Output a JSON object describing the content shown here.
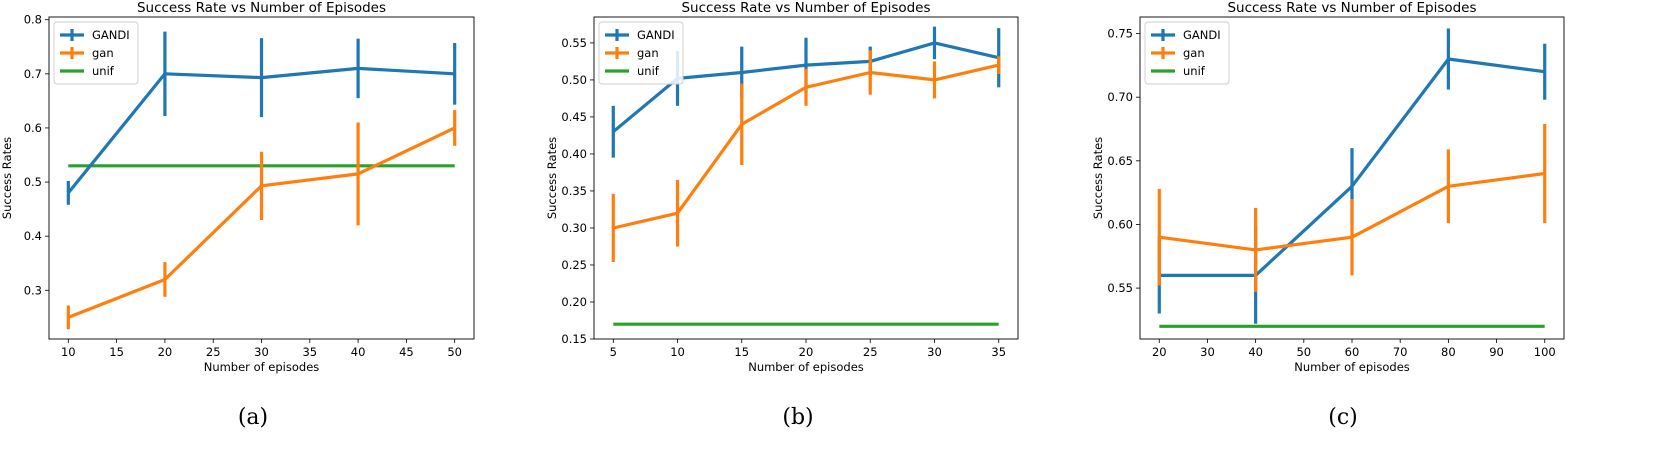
{
  "colors": {
    "GANDI": "#1f77b4",
    "gan": "#ff7f0e",
    "unif": "#2ca02c"
  },
  "chart_data": [
    {
      "type": "line",
      "caption": "(a)",
      "title": "Success Rate vs Number of Episodes",
      "xlabel": "Number of episodes",
      "ylabel": "Success Rates",
      "xlim": [
        8,
        52
      ],
      "ylim": [
        0.21,
        0.805
      ],
      "xticks": [
        10,
        15,
        20,
        25,
        30,
        35,
        40,
        45,
        50
      ],
      "xtick_labels": [
        "10",
        "15",
        "20",
        "25",
        "30",
        "35",
        "40",
        "45",
        "50"
      ],
      "yticks": [
        0.3,
        0.4,
        0.5,
        0.6,
        0.7,
        0.8
      ],
      "ytick_labels": [
        "0.3",
        "0.4",
        "0.5",
        "0.6",
        "0.7",
        "0.8"
      ],
      "legend": "top-left",
      "series": [
        {
          "name": "GANDI",
          "x": [
            10,
            20,
            30,
            40,
            50
          ],
          "y": [
            0.48,
            0.7,
            0.693,
            0.71,
            0.7
          ],
          "err": [
            0.022,
            0.078,
            0.073,
            0.055,
            0.057
          ]
        },
        {
          "name": "gan",
          "x": [
            10,
            20,
            30,
            40,
            50
          ],
          "y": [
            0.25,
            0.32,
            0.493,
            0.515,
            0.6
          ],
          "err": [
            0.022,
            0.032,
            0.063,
            0.095,
            0.033
          ]
        },
        {
          "name": "unif",
          "x": [
            10,
            50
          ],
          "y": [
            0.53,
            0.53
          ],
          "err": []
        }
      ]
    },
    {
      "type": "line",
      "caption": "(b)",
      "title": "Success Rate vs Number of Episodes",
      "xlabel": "Number of episodes",
      "ylabel": "Success Rates",
      "xlim": [
        3.5,
        36.5
      ],
      "ylim": [
        0.15,
        0.585
      ],
      "xticks": [
        5,
        10,
        15,
        20,
        25,
        30,
        35
      ],
      "xtick_labels": [
        "5",
        "10",
        "15",
        "20",
        "25",
        "30",
        "35"
      ],
      "yticks": [
        0.15,
        0.2,
        0.25,
        0.3,
        0.35,
        0.4,
        0.45,
        0.5,
        0.55
      ],
      "ytick_labels": [
        "0.15",
        "0.20",
        "0.25",
        "0.30",
        "0.35",
        "0.40",
        "0.45",
        "0.50",
        "0.55"
      ],
      "legend": "top-left",
      "series": [
        {
          "name": "GANDI",
          "x": [
            5,
            10,
            15,
            20,
            25,
            30,
            35
          ],
          "y": [
            0.43,
            0.502,
            0.51,
            0.52,
            0.525,
            0.55,
            0.53
          ],
          "err": [
            0.035,
            0.037,
            0.035,
            0.037,
            0.02,
            0.022,
            0.04
          ]
        },
        {
          "name": "gan",
          "x": [
            5,
            10,
            15,
            20,
            25,
            30,
            35
          ],
          "y": [
            0.3,
            0.32,
            0.44,
            0.49,
            0.51,
            0.5,
            0.52
          ],
          "err": [
            0.046,
            0.045,
            0.055,
            0.025,
            0.03,
            0.025,
            0.012
          ]
        },
        {
          "name": "unif",
          "x": [
            5,
            35
          ],
          "y": [
            0.17,
            0.17
          ],
          "err": []
        }
      ]
    },
    {
      "type": "line",
      "caption": "(c)",
      "title": "Success Rate vs Number of Episodes",
      "xlabel": "Number of episodes",
      "ylabel": "Success Rates",
      "xlim": [
        16,
        104
      ],
      "ylim": [
        0.51,
        0.763
      ],
      "xticks": [
        20,
        30,
        40,
        50,
        60,
        70,
        80,
        90,
        100
      ],
      "xtick_labels": [
        "20",
        "30",
        "40",
        "50",
        "60",
        "70",
        "80",
        "90",
        "100"
      ],
      "yticks": [
        0.55,
        0.6,
        0.65,
        0.7,
        0.75
      ],
      "ytick_labels": [
        "0.55",
        "0.60",
        "0.65",
        "0.70",
        "0.75"
      ],
      "legend": "top-left",
      "series": [
        {
          "name": "GANDI",
          "x": [
            20,
            40,
            60,
            80,
            100
          ],
          "y": [
            0.56,
            0.56,
            0.63,
            0.73,
            0.72
          ],
          "err": [
            0.03,
            0.038,
            0.03,
            0.024,
            0.022
          ]
        },
        {
          "name": "gan",
          "x": [
            20,
            40,
            60,
            80,
            100
          ],
          "y": [
            0.59,
            0.58,
            0.59,
            0.63,
            0.64
          ],
          "err": [
            0.038,
            0.033,
            0.03,
            0.029,
            0.039
          ]
        },
        {
          "name": "unif",
          "x": [
            20,
            100
          ],
          "y": [
            0.52,
            0.52
          ],
          "err": []
        }
      ]
    }
  ]
}
